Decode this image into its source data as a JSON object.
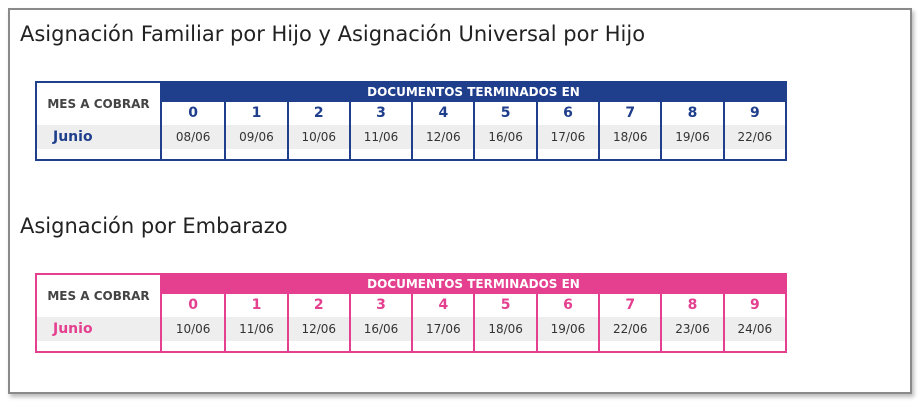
{
  "sections": [
    {
      "title": "Asignación Familiar por Hijo y Asignación Universal por Hijo",
      "table": {
        "row_header": "MES A COBRAR",
        "group_header": "DOCUMENTOS TERMINADOS EN",
        "columns": [
          "0",
          "1",
          "2",
          "3",
          "4",
          "5",
          "6",
          "7",
          "8",
          "9"
        ],
        "month": "Junio",
        "dates": [
          "08/06",
          "09/06",
          "10/06",
          "11/06",
          "12/06",
          "16/06",
          "17/06",
          "18/06",
          "19/06",
          "22/06"
        ]
      }
    },
    {
      "title": "Asignación por Embarazo",
      "table": {
        "row_header": "MES A COBRAR",
        "group_header": "DOCUMENTOS TERMINADOS EN",
        "columns": [
          "0",
          "1",
          "2",
          "3",
          "4",
          "5",
          "6",
          "7",
          "8",
          "9"
        ],
        "month": "Junio",
        "dates": [
          "10/06",
          "11/06",
          "12/06",
          "16/06",
          "17/06",
          "18/06",
          "19/06",
          "22/06",
          "23/06",
          "24/06"
        ]
      }
    }
  ]
}
